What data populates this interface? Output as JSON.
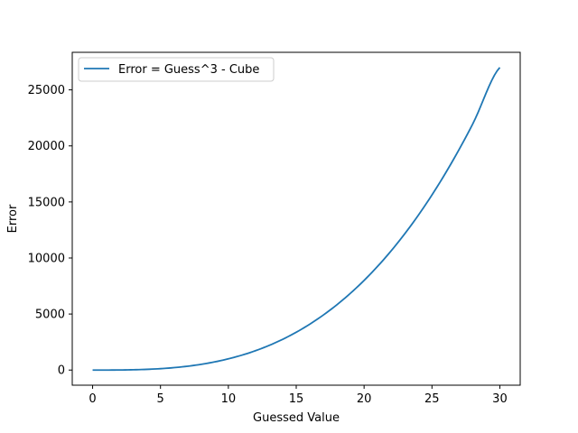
{
  "chart_data": {
    "type": "line",
    "title": "",
    "xlabel": "Guessed Value",
    "ylabel": "Error",
    "xlim": [
      -1.5,
      31.5
    ],
    "ylim": [
      -1350,
      28350
    ],
    "xticks": [
      0,
      5,
      10,
      15,
      20,
      25,
      30
    ],
    "yticks": [
      0,
      5000,
      10000,
      15000,
      20000,
      25000
    ],
    "grid": false,
    "legend_position": "upper-left",
    "series": [
      {
        "name": "Error = Guess^3 - Cube",
        "color": "#1f77b4",
        "x": [
          0,
          2,
          4,
          6,
          8,
          10,
          12,
          14,
          16,
          18,
          20,
          22,
          24,
          26,
          28,
          30
        ],
        "y": [
          0,
          8,
          64,
          216,
          512,
          1000,
          1728,
          2744,
          4096,
          5832,
          8000,
          10648,
          13824,
          17576,
          21952,
          27000
        ]
      }
    ]
  }
}
